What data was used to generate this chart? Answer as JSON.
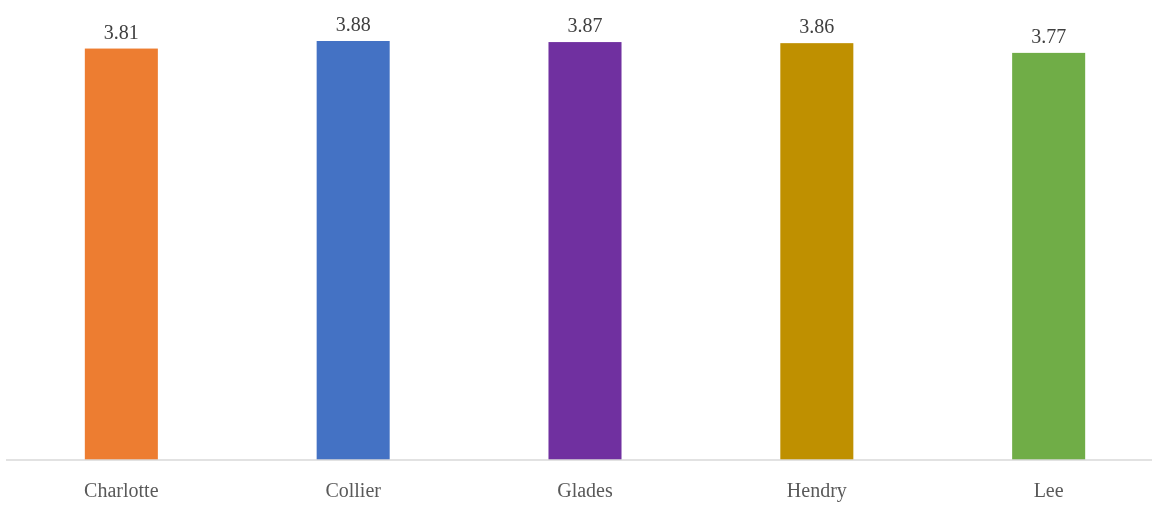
{
  "chart_data": {
    "type": "bar",
    "categories": [
      "Charlotte",
      "Collier",
      "Glades",
      "Hendry",
      "Lee"
    ],
    "values": [
      3.81,
      3.88,
      3.87,
      3.86,
      3.77
    ],
    "colors": [
      "#ed7d31",
      "#4472c4",
      "#7030a0",
      "#bf9000",
      "#70ad47"
    ],
    "data_labels": true
  }
}
